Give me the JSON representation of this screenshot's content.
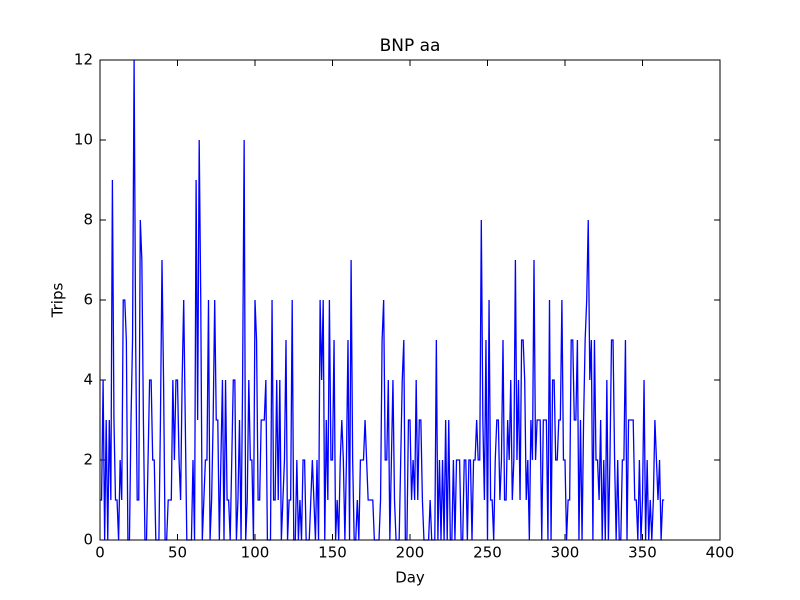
{
  "chart_data": {
    "type": "line",
    "title": "BNP aa",
    "xlabel": "Day",
    "ylabel": "Trips",
    "color": "#0000ff",
    "xlim": [
      0,
      400
    ],
    "xticks": [
      0,
      50,
      100,
      150,
      200,
      250,
      300,
      350,
      400
    ],
    "ylim": [
      0,
      12
    ],
    "yticks": [
      0,
      2,
      4,
      6,
      8,
      10,
      12
    ],
    "x": [
      0,
      1,
      2,
      3,
      4,
      5,
      6,
      7,
      8,
      9,
      10,
      11,
      12,
      13,
      14,
      15,
      16,
      17,
      18,
      19,
      20,
      21,
      22,
      23,
      24,
      25,
      26,
      27,
      28,
      29,
      30,
      31,
      32,
      33,
      34,
      35,
      36,
      37,
      38,
      39,
      40,
      41,
      42,
      43,
      44,
      45,
      46,
      47,
      48,
      49,
      50,
      51,
      52,
      53,
      54,
      55,
      56,
      57,
      58,
      59,
      60,
      61,
      62,
      63,
      64,
      65,
      66,
      67,
      68,
      69,
      70,
      71,
      72,
      73,
      74,
      75,
      76,
      77,
      78,
      79,
      80,
      81,
      82,
      83,
      84,
      85,
      86,
      87,
      88,
      89,
      90,
      91,
      92,
      93,
      94,
      95,
      96,
      97,
      98,
      99,
      100,
      101,
      102,
      103,
      104,
      105,
      106,
      107,
      108,
      109,
      110,
      111,
      112,
      113,
      114,
      115,
      116,
      117,
      118,
      119,
      120,
      121,
      122,
      123,
      124,
      125,
      126,
      127,
      128,
      129,
      130,
      131,
      132,
      133,
      134,
      135,
      136,
      137,
      138,
      139,
      140,
      141,
      142,
      143,
      144,
      145,
      146,
      147,
      148,
      149,
      150,
      151,
      152,
      153,
      154,
      155,
      156,
      157,
      158,
      159,
      160,
      161,
      162,
      163,
      164,
      165,
      166,
      167,
      168,
      169,
      170,
      171,
      172,
      173,
      174,
      175,
      176,
      177,
      178,
      179,
      180,
      181,
      182,
      183,
      184,
      185,
      186,
      187,
      188,
      189,
      190,
      191,
      192,
      193,
      194,
      195,
      196,
      197,
      198,
      199,
      200,
      201,
      202,
      203,
      204,
      205,
      206,
      207,
      208,
      209,
      210,
      211,
      212,
      213,
      214,
      215,
      216,
      217,
      218,
      219,
      220,
      221,
      222,
      223,
      224,
      225,
      226,
      227,
      228,
      229,
      230,
      231,
      232,
      233,
      234,
      235,
      236,
      237,
      238,
      239,
      240,
      241,
      242,
      243,
      244,
      245,
      246,
      247,
      248,
      249,
      250,
      251,
      252,
      253,
      254,
      255,
      256,
      257,
      258,
      259,
      260,
      261,
      262,
      263,
      264,
      265,
      266,
      267,
      268,
      269,
      270,
      271,
      272,
      273,
      274,
      275,
      276,
      277,
      278,
      279,
      280,
      281,
      282,
      283,
      284,
      285,
      286,
      287,
      288,
      289,
      290,
      291,
      292,
      293,
      294,
      295,
      296,
      297,
      298,
      299,
      300,
      301,
      302,
      303,
      304,
      305,
      306,
      307,
      308,
      309,
      310,
      311,
      312,
      313,
      314,
      315,
      316,
      317,
      318,
      319,
      320,
      321,
      322,
      323,
      324,
      325,
      326,
      327,
      328,
      329,
      330,
      331,
      332,
      333,
      334,
      335,
      336,
      337,
      338,
      339,
      340,
      341,
      342,
      343,
      344,
      345,
      346,
      347,
      348,
      349,
      350,
      351,
      352,
      353,
      354,
      355,
      356,
      357,
      358,
      359,
      360,
      361,
      362,
      363,
      364
    ],
    "values": [
      1,
      1,
      4,
      0,
      3,
      0,
      3,
      1,
      9,
      3,
      1,
      1,
      0,
      2,
      1,
      6,
      6,
      5,
      0,
      0,
      3,
      5,
      12,
      5,
      1,
      1,
      8,
      7,
      3,
      0,
      0,
      2,
      4,
      4,
      2,
      2,
      0,
      0,
      0,
      3,
      7,
      4,
      0,
      0,
      1,
      1,
      1,
      4,
      2,
      4,
      4,
      2,
      1,
      4,
      6,
      3,
      0,
      0,
      0,
      0,
      2,
      0,
      9,
      3,
      10,
      6,
      0,
      1,
      2,
      2,
      6,
      0,
      1,
      3,
      6,
      3,
      3,
      0,
      2,
      4,
      0,
      4,
      1,
      1,
      0,
      2,
      4,
      4,
      0,
      1,
      3,
      0,
      4,
      10,
      0,
      1,
      4,
      2,
      2,
      0,
      6,
      5,
      1,
      1,
      3,
      3,
      3,
      4,
      0,
      0,
      0,
      6,
      1,
      1,
      4,
      1,
      4,
      0,
      1,
      2,
      5,
      0,
      1,
      1,
      6,
      0,
      0,
      2,
      0,
      1,
      0,
      2,
      2,
      0,
      0,
      0,
      1,
      2,
      1,
      0,
      2,
      0,
      6,
      4,
      6,
      0,
      3,
      1,
      6,
      2,
      2,
      5,
      0,
      1,
      0,
      2,
      3,
      2,
      0,
      2,
      5,
      0,
      7,
      2,
      0,
      0,
      1,
      0,
      2,
      2,
      2,
      3,
      2,
      1,
      1,
      1,
      1,
      0,
      0,
      0,
      0,
      1,
      5,
      6,
      2,
      2,
      4,
      0,
      2,
      4,
      1,
      0,
      0,
      0,
      2,
      4,
      5,
      0,
      0,
      3,
      3,
      1,
      2,
      1,
      4,
      1,
      3,
      3,
      1,
      0,
      0,
      0,
      0,
      1,
      0,
      0,
      0,
      5,
      0,
      2,
      0,
      2,
      0,
      3,
      0,
      3,
      0,
      0,
      2,
      0,
      2,
      2,
      2,
      0,
      0,
      2,
      2,
      0,
      2,
      2,
      0,
      2,
      2,
      3,
      2,
      2,
      8,
      3,
      1,
      5,
      0,
      6,
      1,
      1,
      0,
      2,
      3,
      3,
      1,
      2,
      5,
      1,
      1,
      3,
      2,
      4,
      1,
      2,
      7,
      2,
      4,
      1,
      5,
      5,
      4,
      1,
      2,
      0,
      3,
      2,
      7,
      2,
      3,
      3,
      3,
      0,
      3,
      3,
      3,
      0,
      6,
      0,
      4,
      4,
      2,
      2,
      3,
      3,
      6,
      2,
      2,
      0,
      1,
      1,
      5,
      5,
      3,
      3,
      5,
      0,
      3,
      0,
      3,
      5,
      6,
      8,
      4,
      5,
      0,
      5,
      2,
      2,
      1,
      3,
      0,
      2,
      0,
      4,
      0,
      2,
      5,
      5,
      2,
      0,
      2,
      0,
      0,
      2,
      2,
      5,
      0,
      3,
      3,
      3,
      3,
      1,
      1,
      0,
      2,
      0,
      1,
      4,
      0,
      2,
      0,
      1,
      0,
      1,
      3,
      2,
      1,
      2,
      0,
      1,
      1
    ]
  }
}
